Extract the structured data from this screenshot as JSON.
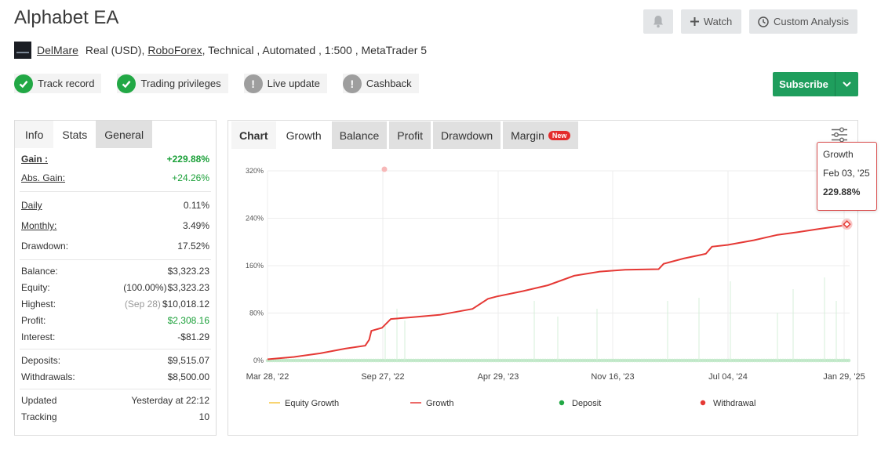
{
  "header": {
    "title": "Alphabet EA",
    "watch_label": "Watch",
    "analysis_label": "Custom Analysis",
    "subscribe_label": "Subscribe"
  },
  "meta": {
    "author": "DelMare",
    "account": "Real (USD),",
    "broker": "RoboForex",
    "details": ", Technical , Automated , 1:500 , MetaTrader 5"
  },
  "badges": [
    {
      "label": "Track record",
      "state": "check"
    },
    {
      "label": "Trading privileges",
      "state": "check"
    },
    {
      "label": "Live update",
      "state": "exclamation"
    },
    {
      "label": "Cashback",
      "state": "exclamation"
    }
  ],
  "stats": {
    "tabs": [
      "Info",
      "Stats",
      "General"
    ],
    "gain": {
      "label": "Gain :",
      "value": "+229.88%"
    },
    "abs_gain": {
      "label": "Abs. Gain:",
      "value": "+24.26%"
    },
    "daily": {
      "label": "Daily",
      "value": "0.11%"
    },
    "monthly": {
      "label": "Monthly:",
      "value": "3.49%"
    },
    "drawdown": {
      "label": "Drawdown:",
      "value": "17.52%"
    },
    "balance": {
      "label": "Balance:",
      "value": "$3,323.23"
    },
    "equity": {
      "label": "Equity:",
      "sub": "(100.00%)",
      "value": "$3,323.23"
    },
    "highest": {
      "label": "Highest:",
      "sub": "(Sep 28)",
      "value": "$10,018.12"
    },
    "profit": {
      "label": "Profit:",
      "value": "$2,308.16"
    },
    "interest": {
      "label": "Interest:",
      "value": "-$81.29"
    },
    "deposits": {
      "label": "Deposits:",
      "value": "$9,515.07"
    },
    "withdrawals": {
      "label": "Withdrawals:",
      "value": "$8,500.00"
    },
    "updated": {
      "label": "Updated",
      "value": "Yesterday at 22:12"
    },
    "tracking": {
      "label": "Tracking",
      "value": "10"
    }
  },
  "chart_tabs": [
    "Chart",
    "Growth",
    "Balance",
    "Profit",
    "Drawdown",
    "Margin"
  ],
  "new_badge": "New",
  "tooltip": {
    "series": "Growth",
    "date": "Feb 03, '25",
    "value": "229.88%"
  },
  "colors": {
    "growth": "#e53935",
    "equity": "#f5c542",
    "deposit": "#22a845",
    "withdrawal": "#e53935",
    "accent": "#1f9e5d"
  },
  "chart_data": {
    "type": "line",
    "x_ticks": [
      "Mar 28, '22",
      "Sep 27, '22",
      "Apr 29, '23",
      "Nov 16, '23",
      "Jul 04, '24",
      "Jan 29, '25"
    ],
    "y_ticks": [
      "0%",
      "80%",
      "160%",
      "240%",
      "320%"
    ],
    "ylim": [
      0,
      320
    ],
    "grid": true,
    "legend_position": "bottom",
    "legend": [
      "Equity Growth",
      "Growth",
      "Deposit",
      "Withdrawal"
    ],
    "series": [
      {
        "name": "Growth",
        "x": [
          "2022-03-28",
          "2022-05-15",
          "2022-07-01",
          "2022-08-15",
          "2022-09-20",
          "2022-09-27",
          "2022-10-01",
          "2022-10-20",
          "2022-11-05",
          "2022-12-15",
          "2023-02-01",
          "2023-04-01",
          "2023-04-29",
          "2023-05-15",
          "2023-07-01",
          "2023-08-15",
          "2023-10-01",
          "2023-11-16",
          "2024-01-01",
          "2024-03-01",
          "2024-03-10",
          "2024-04-15",
          "2024-05-25",
          "2024-06-05",
          "2024-07-04",
          "2024-08-20",
          "2024-10-01",
          "2024-11-10",
          "2024-12-15",
          "2025-01-29",
          "2025-02-03"
        ],
        "values": [
          2,
          6,
          12,
          20,
          25,
          35,
          50,
          55,
          70,
          73,
          77,
          87,
          104,
          108,
          117,
          127,
          143,
          150,
          153,
          154,
          163,
          172,
          180,
          192,
          195,
          203,
          212,
          217,
          222,
          228,
          229.88
        ]
      }
    ]
  }
}
